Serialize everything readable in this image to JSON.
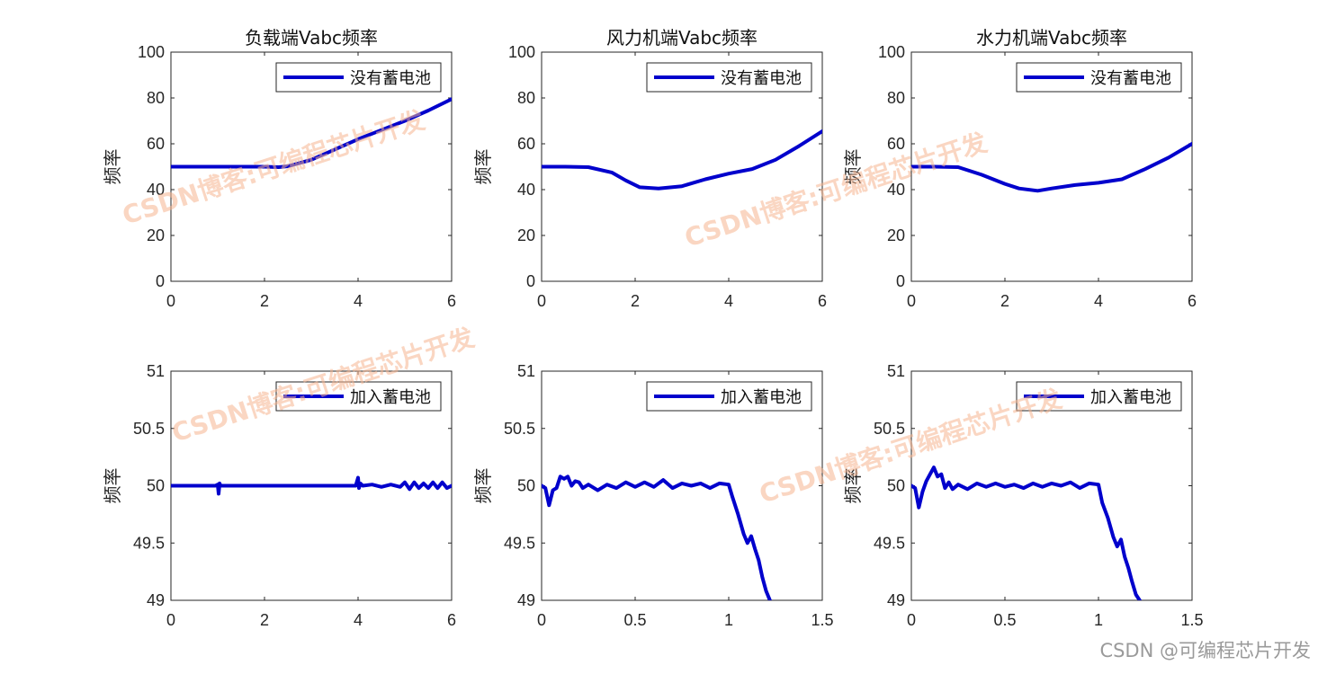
{
  "chart_data": [
    {
      "type": "line",
      "title": "负载端Vabc频率",
      "ylabel": "频率",
      "xlim": [
        0,
        6
      ],
      "ylim": [
        0,
        100
      ],
      "xticks": [
        "0",
        "2",
        "4",
        "6"
      ],
      "yticks": [
        "0",
        "20",
        "40",
        "60",
        "80",
        "100"
      ],
      "legend_position": "top-right",
      "series": [
        {
          "name": "没有蓄电池",
          "color": "#0000cc",
          "x": [
            0,
            1,
            2,
            2.3,
            2.5,
            3,
            3.5,
            4,
            4.5,
            5,
            5.5,
            6
          ],
          "y": [
            50,
            50,
            50,
            49.8,
            50.2,
            53,
            57.5,
            62,
            66,
            70,
            74.5,
            79.5
          ]
        }
      ]
    },
    {
      "type": "line",
      "title": "风力机端Vabc频率",
      "ylabel": "频率",
      "xlim": [
        0,
        6
      ],
      "ylim": [
        0,
        100
      ],
      "xticks": [
        "0",
        "2",
        "4",
        "6"
      ],
      "yticks": [
        "0",
        "20",
        "40",
        "60",
        "80",
        "100"
      ],
      "legend_position": "top-right",
      "series": [
        {
          "name": "没有蓄电池",
          "color": "#0000cc",
          "x": [
            0,
            0.5,
            1,
            1.5,
            1.8,
            2.1,
            2.5,
            3,
            3.5,
            4,
            4.5,
            5,
            5.5,
            6
          ],
          "y": [
            50,
            50,
            49.8,
            47.5,
            44,
            41,
            40.5,
            41.5,
            44.5,
            47,
            49,
            53,
            59,
            65.5
          ]
        }
      ]
    },
    {
      "type": "line",
      "title": "水力机端Vabc频率",
      "ylabel": "频率",
      "xlim": [
        0,
        6
      ],
      "ylim": [
        0,
        100
      ],
      "xticks": [
        "0",
        "2",
        "4",
        "6"
      ],
      "yticks": [
        "0",
        "20",
        "40",
        "60",
        "80",
        "100"
      ],
      "legend_position": "top-right",
      "series": [
        {
          "name": "没有蓄电池",
          "color": "#0000cc",
          "x": [
            0,
            0.5,
            1,
            1.5,
            2,
            2.3,
            2.7,
            3,
            3.5,
            4,
            4.5,
            5,
            5.5,
            6
          ],
          "y": [
            50,
            50,
            49.8,
            46.5,
            42.5,
            40.5,
            39.5,
            40.5,
            42,
            43,
            44.5,
            49,
            54,
            60
          ]
        }
      ]
    },
    {
      "type": "line",
      "xlim": [
        0,
        6
      ],
      "ylim": [
        49,
        51
      ],
      "ylabel": "频率",
      "xticks": [
        "0",
        "2",
        "4",
        "6"
      ],
      "yticks": [
        "49",
        "49.5",
        "50",
        "50.5",
        "51"
      ],
      "legend_position": "top-right",
      "series": [
        {
          "name": "加入蓄电池",
          "color": "#0000cc",
          "x": [
            0,
            0.95,
            1.0,
            1.02,
            1.04,
            1.06,
            1.1,
            2,
            3,
            3.95,
            4.0,
            4.02,
            4.05,
            4.1,
            4.3,
            4.5,
            4.7,
            4.9,
            5.0,
            5.1,
            5.2,
            5.3,
            5.4,
            5.5,
            5.6,
            5.7,
            5.8,
            5.9,
            6.0
          ],
          "y": [
            50,
            50,
            50.01,
            49.93,
            50.02,
            50.0,
            50,
            50,
            50,
            50,
            50.07,
            49.98,
            50.02,
            50,
            50.01,
            49.99,
            50.01,
            49.99,
            50.03,
            49.97,
            50.03,
            49.98,
            50.02,
            49.98,
            50.03,
            49.98,
            50.03,
            49.98,
            50.0
          ]
        }
      ]
    },
    {
      "type": "line",
      "xlim": [
        0,
        1.5
      ],
      "ylim": [
        49,
        51
      ],
      "ylabel": "频率",
      "xticks": [
        "0",
        "0.5",
        "1",
        "1.5"
      ],
      "yticks": [
        "49",
        "49.5",
        "50",
        "50.5",
        "51"
      ],
      "legend_position": "top-right",
      "series": [
        {
          "name": "加入蓄电池",
          "color": "#0000cc",
          "x": [
            0,
            0.02,
            0.04,
            0.06,
            0.08,
            0.1,
            0.12,
            0.14,
            0.16,
            0.18,
            0.2,
            0.22,
            0.25,
            0.3,
            0.35,
            0.4,
            0.45,
            0.5,
            0.55,
            0.6,
            0.65,
            0.7,
            0.75,
            0.8,
            0.85,
            0.9,
            0.95,
            1.0,
            1.02,
            1.05,
            1.08,
            1.1,
            1.12,
            1.14,
            1.16,
            1.18,
            1.2,
            1.22
          ],
          "y": [
            50,
            49.98,
            49.83,
            49.96,
            49.98,
            50.08,
            50.06,
            50.08,
            50.0,
            50.04,
            50.03,
            49.98,
            50.01,
            49.96,
            50.01,
            49.98,
            50.03,
            49.99,
            50.03,
            49.99,
            50.05,
            49.98,
            50.02,
            50.0,
            50.02,
            49.98,
            50.02,
            50.01,
            49.9,
            49.75,
            49.58,
            49.5,
            49.56,
            49.45,
            49.35,
            49.2,
            49.08,
            49.0
          ]
        }
      ]
    },
    {
      "type": "line",
      "xlim": [
        0,
        1.5
      ],
      "ylim": [
        49,
        51
      ],
      "ylabel": "频率",
      "xticks": [
        "0",
        "0.5",
        "1",
        "1.5"
      ],
      "yticks": [
        "49",
        "49.5",
        "50",
        "50.5",
        "51"
      ],
      "legend_position": "top-right",
      "series": [
        {
          "name": "加入蓄电池",
          "color": "#0000cc",
          "x": [
            0,
            0.02,
            0.04,
            0.06,
            0.08,
            0.1,
            0.12,
            0.14,
            0.16,
            0.18,
            0.2,
            0.22,
            0.25,
            0.3,
            0.35,
            0.4,
            0.45,
            0.5,
            0.55,
            0.6,
            0.65,
            0.7,
            0.75,
            0.8,
            0.85,
            0.9,
            0.95,
            1.0,
            1.02,
            1.05,
            1.08,
            1.1,
            1.12,
            1.14,
            1.16,
            1.18,
            1.2,
            1.22
          ],
          "y": [
            50,
            49.98,
            49.81,
            49.95,
            50.04,
            50.1,
            50.16,
            50.08,
            50.1,
            49.98,
            50.03,
            49.97,
            50.01,
            49.97,
            50.02,
            49.99,
            50.02,
            49.99,
            50.01,
            49.98,
            50.02,
            49.99,
            50.02,
            50.0,
            50.03,
            49.98,
            50.02,
            50.01,
            49.85,
            49.72,
            49.55,
            49.47,
            49.53,
            49.38,
            49.28,
            49.16,
            49.05,
            49.0
          ]
        }
      ]
    }
  ],
  "watermarks": [
    "CSDN博客:可编程芯片开发",
    "CSDN博客:可编程芯片开发",
    "CSDN博客:可编程芯片开发",
    "CSDN博客:可编程芯片开发"
  ],
  "footer_watermark": "CSDN @可编程芯片开发"
}
